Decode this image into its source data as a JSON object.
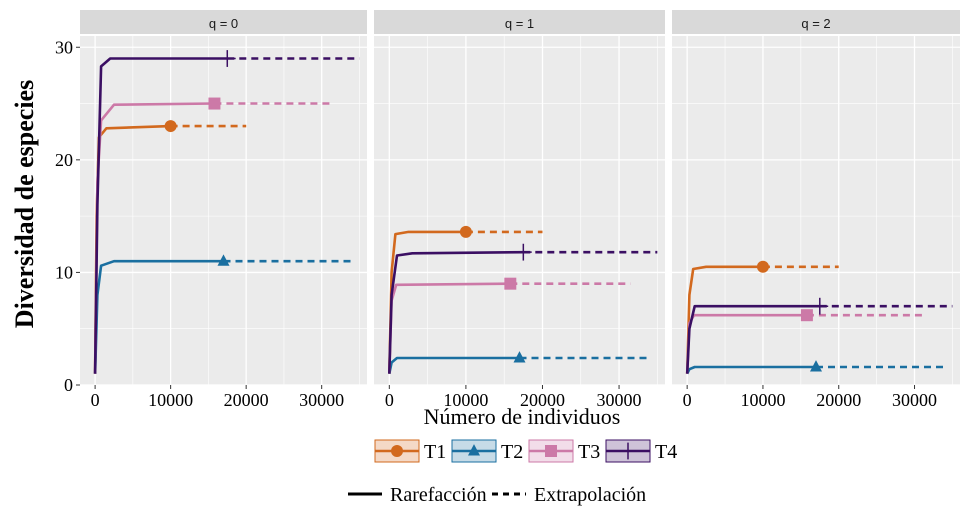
{
  "chart_data": {
    "type": "line",
    "ylabel": "Diversidad de especies",
    "xlabel": "Número de individuos",
    "xlim": [
      -2000,
      36000
    ],
    "ylim": [
      0,
      31
    ],
    "x_ticks": [
      0,
      10000,
      20000,
      30000
    ],
    "x_tick_labels": [
      "0",
      "10000",
      "20000",
      "30000"
    ],
    "y_ticks": [
      0,
      10,
      20,
      30
    ],
    "y_tick_labels": [
      "0",
      "10",
      "20",
      "30"
    ],
    "grid": true,
    "panels": [
      {
        "label": "q = 0",
        "series": [
          {
            "name": "T1",
            "observed": [
              10000,
              23
            ],
            "rare": [
              [
                0,
                1
              ],
              [
                200,
                15
              ],
              [
                500,
                22
              ],
              [
                1500,
                22.8
              ],
              [
                10000,
                23
              ]
            ],
            "extrap": [
              [
                10000,
                23
              ],
              [
                20000,
                23
              ]
            ]
          },
          {
            "name": "T2",
            "observed": [
              17000,
              11
            ],
            "rare": [
              [
                0,
                1
              ],
              [
                300,
                8
              ],
              [
                800,
                10.6
              ],
              [
                2500,
                11
              ],
              [
                17000,
                11
              ]
            ],
            "extrap": [
              [
                17000,
                11
              ],
              [
                34000,
                11
              ]
            ]
          },
          {
            "name": "T3",
            "observed": [
              15800,
              25
            ],
            "rare": [
              [
                0,
                1
              ],
              [
                300,
                18
              ],
              [
                800,
                23.5
              ],
              [
                2500,
                24.9
              ],
              [
                15800,
                25
              ]
            ],
            "extrap": [
              [
                15800,
                25
              ],
              [
                31500,
                25
              ]
            ]
          },
          {
            "name": "T4",
            "observed": [
              17500,
              29
            ],
            "rare": [
              [
                0,
                1
              ],
              [
                300,
                16
              ],
              [
                800,
                28.3
              ],
              [
                2000,
                29
              ],
              [
                17500,
                29
              ]
            ],
            "extrap": [
              [
                17500,
                29
              ],
              [
                35000,
                29
              ]
            ]
          }
        ]
      },
      {
        "label": "q = 1",
        "series": [
          {
            "name": "T1",
            "observed": [
              10000,
              13.6
            ],
            "rare": [
              [
                0,
                1
              ],
              [
                300,
                10
              ],
              [
                800,
                13.4
              ],
              [
                2500,
                13.6
              ],
              [
                10000,
                13.6
              ]
            ],
            "extrap": [
              [
                10000,
                13.6
              ],
              [
                20000,
                13.6
              ]
            ]
          },
          {
            "name": "T2",
            "observed": [
              17000,
              2.4
            ],
            "rare": [
              [
                0,
                1
              ],
              [
                300,
                2
              ],
              [
                1000,
                2.4
              ],
              [
                17000,
                2.4
              ]
            ],
            "extrap": [
              [
                17000,
                2.4
              ],
              [
                34000,
                2.4
              ]
            ]
          },
          {
            "name": "T3",
            "observed": [
              15800,
              9
            ],
            "rare": [
              [
                0,
                1
              ],
              [
                300,
                7.5
              ],
              [
                900,
                8.9
              ],
              [
                15800,
                9
              ]
            ],
            "extrap": [
              [
                15800,
                9
              ],
              [
                31500,
                9
              ]
            ]
          },
          {
            "name": "T4",
            "observed": [
              17500,
              11.8
            ],
            "rare": [
              [
                0,
                1
              ],
              [
                300,
                8
              ],
              [
                1000,
                11.5
              ],
              [
                3000,
                11.7
              ],
              [
                17500,
                11.8
              ]
            ],
            "extrap": [
              [
                17500,
                11.8
              ],
              [
                35000,
                11.8
              ]
            ]
          }
        ]
      },
      {
        "label": "q = 2",
        "series": [
          {
            "name": "T1",
            "observed": [
              10000,
              10.5
            ],
            "rare": [
              [
                0,
                1
              ],
              [
                300,
                8
              ],
              [
                800,
                10.3
              ],
              [
                2500,
                10.5
              ],
              [
                10000,
                10.5
              ]
            ],
            "extrap": [
              [
                10000,
                10.5
              ],
              [
                20000,
                10.5
              ]
            ]
          },
          {
            "name": "T2",
            "observed": [
              17000,
              1.6
            ],
            "rare": [
              [
                0,
                1
              ],
              [
                300,
                1.4
              ],
              [
                1000,
                1.6
              ],
              [
                17000,
                1.6
              ]
            ],
            "extrap": [
              [
                17000,
                1.6
              ],
              [
                34000,
                1.6
              ]
            ]
          },
          {
            "name": "T3",
            "observed": [
              15800,
              6.2
            ],
            "rare": [
              [
                0,
                1
              ],
              [
                300,
                5.5
              ],
              [
                900,
                6.2
              ],
              [
                15800,
                6.2
              ]
            ],
            "extrap": [
              [
                15800,
                6.2
              ],
              [
                31500,
                6.2
              ]
            ]
          },
          {
            "name": "T4",
            "observed": [
              17500,
              7
            ],
            "rare": [
              [
                0,
                1
              ],
              [
                300,
                5
              ],
              [
                1000,
                7
              ],
              [
                17500,
                7
              ]
            ],
            "extrap": [
              [
                17500,
                7
              ],
              [
                35000,
                7
              ]
            ]
          }
        ]
      }
    ],
    "series_styles": [
      {
        "name": "T1",
        "color": "#D2691E",
        "shape": "circle"
      },
      {
        "name": "T2",
        "color": "#1A6FA0",
        "shape": "triangle"
      },
      {
        "name": "T3",
        "color": "#CC79A7",
        "shape": "square"
      },
      {
        "name": "T4",
        "color": "#3B0F63",
        "shape": "plus"
      }
    ],
    "line_legend": [
      {
        "label": "Rarefacción",
        "dash": "solid"
      },
      {
        "label": "Extrapolación",
        "dash": "dashed"
      }
    ],
    "colors": {
      "panel_bg": "#EBEBEB",
      "strip_bg": "#D9D9D9",
      "grid": "#FFFFFF"
    }
  }
}
